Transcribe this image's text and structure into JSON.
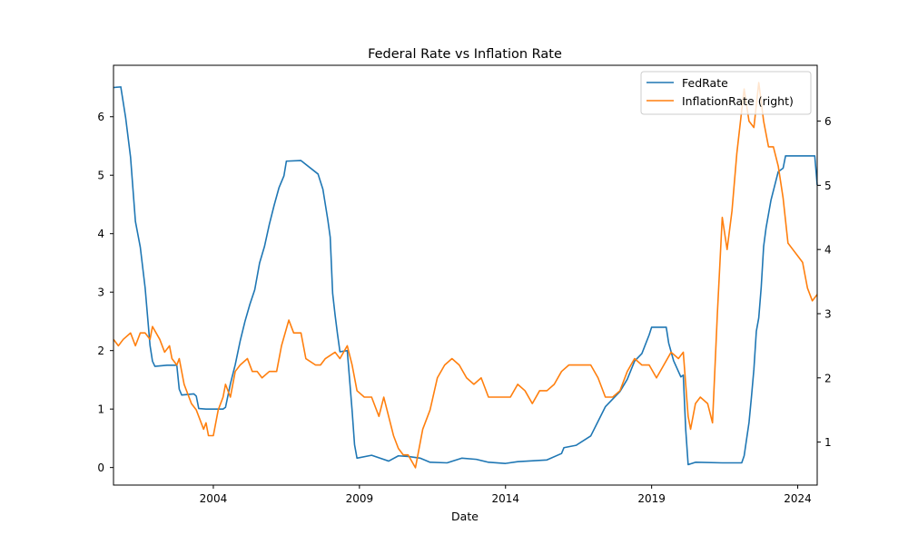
{
  "chart_data": {
    "type": "line",
    "title": "Federal Rate vs Inflation Rate",
    "xlabel": "Date",
    "ylabel_left": "",
    "ylabel_right": "",
    "x_ticks": [
      "2004",
      "2009",
      "2014",
      "2019",
      "2024"
    ],
    "y_left_ticks": [
      "0",
      "1",
      "2",
      "3",
      "4",
      "5",
      "6"
    ],
    "y_right_ticks": [
      "1",
      "2",
      "3",
      "4",
      "5",
      "6"
    ],
    "xlim": [
      "2000-08",
      "2024-09"
    ],
    "ylim_left": [
      -0.3,
      6.88
    ],
    "ylim_right": [
      0.33,
      6.87
    ],
    "legend": {
      "position": "top-right",
      "entries": [
        "FedRate",
        "InflationRate (right)"
      ]
    },
    "grid": false,
    "series": [
      {
        "name": "FedRate",
        "axis": "left",
        "color": "#1f77b4",
        "points": [
          [
            "2000-08",
            6.5
          ],
          [
            "2000-11",
            6.51
          ],
          [
            "2001-01",
            5.98
          ],
          [
            "2001-03",
            5.31
          ],
          [
            "2001-05",
            4.21
          ],
          [
            "2001-07",
            3.77
          ],
          [
            "2001-09",
            3.07
          ],
          [
            "2001-11",
            2.09
          ],
          [
            "2001-12",
            1.82
          ],
          [
            "2002-01",
            1.73
          ],
          [
            "2002-06",
            1.75
          ],
          [
            "2002-10",
            1.75
          ],
          [
            "2002-11",
            1.34
          ],
          [
            "2002-12",
            1.24
          ],
          [
            "2003-05",
            1.26
          ],
          [
            "2003-06",
            1.22
          ],
          [
            "2003-07",
            1.01
          ],
          [
            "2003-10",
            1.0
          ],
          [
            "2004-01",
            1.0
          ],
          [
            "2004-05",
            1.0
          ],
          [
            "2004-06",
            1.03
          ],
          [
            "2004-08",
            1.43
          ],
          [
            "2004-10",
            1.76
          ],
          [
            "2004-12",
            2.16
          ],
          [
            "2005-02",
            2.5
          ],
          [
            "2005-04",
            2.79
          ],
          [
            "2005-06",
            3.04
          ],
          [
            "2005-08",
            3.5
          ],
          [
            "2005-10",
            3.78
          ],
          [
            "2005-12",
            4.16
          ],
          [
            "2006-02",
            4.49
          ],
          [
            "2006-04",
            4.79
          ],
          [
            "2006-06",
            4.99
          ],
          [
            "2006-07",
            5.24
          ],
          [
            "2007-01",
            5.25
          ],
          [
            "2007-08",
            5.02
          ],
          [
            "2007-10",
            4.76
          ],
          [
            "2007-12",
            4.24
          ],
          [
            "2008-01",
            3.94
          ],
          [
            "2008-02",
            2.98
          ],
          [
            "2008-03",
            2.61
          ],
          [
            "2008-04",
            2.28
          ],
          [
            "2008-05",
            1.98
          ],
          [
            "2008-08",
            2.0
          ],
          [
            "2008-10",
            0.97
          ],
          [
            "2008-11",
            0.39
          ],
          [
            "2008-12",
            0.16
          ],
          [
            "2009-06",
            0.21
          ],
          [
            "2010-01",
            0.11
          ],
          [
            "2010-05",
            0.2
          ],
          [
            "2010-09",
            0.19
          ],
          [
            "2011-02",
            0.16
          ],
          [
            "2011-06",
            0.09
          ],
          [
            "2012-01",
            0.08
          ],
          [
            "2012-07",
            0.16
          ],
          [
            "2013-01",
            0.14
          ],
          [
            "2013-06",
            0.09
          ],
          [
            "2014-01",
            0.07
          ],
          [
            "2014-06",
            0.1
          ],
          [
            "2015-06",
            0.13
          ],
          [
            "2015-12",
            0.24
          ],
          [
            "2016-01",
            0.34
          ],
          [
            "2016-06",
            0.38
          ],
          [
            "2016-12",
            0.54
          ],
          [
            "2017-03",
            0.79
          ],
          [
            "2017-06",
            1.04
          ],
          [
            "2017-12",
            1.3
          ],
          [
            "2018-03",
            1.51
          ],
          [
            "2018-06",
            1.82
          ],
          [
            "2018-09",
            1.95
          ],
          [
            "2018-12",
            2.27
          ],
          [
            "2019-01",
            2.4
          ],
          [
            "2019-07",
            2.4
          ],
          [
            "2019-08",
            2.13
          ],
          [
            "2019-10",
            1.83
          ],
          [
            "2020-01",
            1.55
          ],
          [
            "2020-02",
            1.58
          ],
          [
            "2020-03",
            0.65
          ],
          [
            "2020-04",
            0.05
          ],
          [
            "2020-07",
            0.09
          ],
          [
            "2021-06",
            0.08
          ],
          [
            "2022-02",
            0.08
          ],
          [
            "2022-03",
            0.2
          ],
          [
            "2022-05",
            0.77
          ],
          [
            "2022-06",
            1.21
          ],
          [
            "2022-07",
            1.68
          ],
          [
            "2022-08",
            2.33
          ],
          [
            "2022-09",
            2.56
          ],
          [
            "2022-10",
            3.08
          ],
          [
            "2022-11",
            3.78
          ],
          [
            "2022-12",
            4.1
          ],
          [
            "2023-02",
            4.57
          ],
          [
            "2023-05",
            5.06
          ],
          [
            "2023-07",
            5.12
          ],
          [
            "2023-08",
            5.33
          ],
          [
            "2024-08",
            5.33
          ],
          [
            "2024-09",
            4.83
          ]
        ]
      },
      {
        "name": "InflationRate (right)",
        "axis": "right",
        "color": "#ff7f0e",
        "points": [
          [
            "2000-08",
            2.6
          ],
          [
            "2000-10",
            2.5
          ],
          [
            "2000-12",
            2.6
          ],
          [
            "2001-03",
            2.7
          ],
          [
            "2001-05",
            2.5
          ],
          [
            "2001-07",
            2.7
          ],
          [
            "2001-09",
            2.7
          ],
          [
            "2001-11",
            2.6
          ],
          [
            "2001-12",
            2.8
          ],
          [
            "2002-03",
            2.6
          ],
          [
            "2002-05",
            2.4
          ],
          [
            "2002-07",
            2.5
          ],
          [
            "2002-08",
            2.3
          ],
          [
            "2002-10",
            2.2
          ],
          [
            "2002-11",
            2.3
          ],
          [
            "2003-01",
            1.9
          ],
          [
            "2003-04",
            1.6
          ],
          [
            "2003-06",
            1.5
          ],
          [
            "2003-08",
            1.3
          ],
          [
            "2003-09",
            1.2
          ],
          [
            "2003-10",
            1.3
          ],
          [
            "2003-11",
            1.1
          ],
          [
            "2004-01",
            1.1
          ],
          [
            "2004-03",
            1.5
          ],
          [
            "2004-05",
            1.7
          ],
          [
            "2004-06",
            1.9
          ],
          [
            "2004-08",
            1.7
          ],
          [
            "2004-10",
            2.1
          ],
          [
            "2004-12",
            2.2
          ],
          [
            "2005-03",
            2.3
          ],
          [
            "2005-05",
            2.1
          ],
          [
            "2005-07",
            2.1
          ],
          [
            "2005-09",
            2.0
          ],
          [
            "2005-12",
            2.1
          ],
          [
            "2006-03",
            2.1
          ],
          [
            "2006-05",
            2.5
          ],
          [
            "2006-08",
            2.9
          ],
          [
            "2006-10",
            2.7
          ],
          [
            "2007-01",
            2.7
          ],
          [
            "2007-03",
            2.3
          ],
          [
            "2007-07",
            2.2
          ],
          [
            "2007-09",
            2.2
          ],
          [
            "2007-11",
            2.3
          ],
          [
            "2008-03",
            2.4
          ],
          [
            "2008-05",
            2.3
          ],
          [
            "2008-08",
            2.5
          ],
          [
            "2008-10",
            2.2
          ],
          [
            "2008-12",
            1.8
          ],
          [
            "2009-03",
            1.7
          ],
          [
            "2009-06",
            1.7
          ],
          [
            "2009-09",
            1.4
          ],
          [
            "2009-11",
            1.7
          ],
          [
            "2010-03",
            1.1
          ],
          [
            "2010-05",
            0.9
          ],
          [
            "2010-07",
            0.8
          ],
          [
            "2010-09",
            0.8
          ],
          [
            "2010-12",
            0.6
          ],
          [
            "2011-03",
            1.2
          ],
          [
            "2011-06",
            1.5
          ],
          [
            "2011-09",
            2.0
          ],
          [
            "2011-12",
            2.2
          ],
          [
            "2012-03",
            2.3
          ],
          [
            "2012-06",
            2.2
          ],
          [
            "2012-09",
            2.0
          ],
          [
            "2012-12",
            1.9
          ],
          [
            "2013-03",
            2.0
          ],
          [
            "2013-06",
            1.7
          ],
          [
            "2013-09",
            1.7
          ],
          [
            "2013-12",
            1.7
          ],
          [
            "2014-03",
            1.7
          ],
          [
            "2014-06",
            1.9
          ],
          [
            "2014-09",
            1.8
          ],
          [
            "2014-12",
            1.6
          ],
          [
            "2015-03",
            1.8
          ],
          [
            "2015-06",
            1.8
          ],
          [
            "2015-09",
            1.9
          ],
          [
            "2015-12",
            2.1
          ],
          [
            "2016-03",
            2.2
          ],
          [
            "2016-06",
            2.2
          ],
          [
            "2016-09",
            2.2
          ],
          [
            "2016-12",
            2.2
          ],
          [
            "2017-03",
            2.0
          ],
          [
            "2017-06",
            1.7
          ],
          [
            "2017-09",
            1.7
          ],
          [
            "2017-12",
            1.8
          ],
          [
            "2018-03",
            2.1
          ],
          [
            "2018-06",
            2.3
          ],
          [
            "2018-09",
            2.2
          ],
          [
            "2018-12",
            2.2
          ],
          [
            "2019-03",
            2.0
          ],
          [
            "2019-06",
            2.2
          ],
          [
            "2019-09",
            2.4
          ],
          [
            "2019-12",
            2.3
          ],
          [
            "2020-02",
            2.4
          ],
          [
            "2020-04",
            1.4
          ],
          [
            "2020-05",
            1.2
          ],
          [
            "2020-07",
            1.6
          ],
          [
            "2020-09",
            1.7
          ],
          [
            "2020-12",
            1.6
          ],
          [
            "2021-02",
            1.3
          ],
          [
            "2021-04",
            3.0
          ],
          [
            "2021-06",
            4.5
          ],
          [
            "2021-08",
            4.0
          ],
          [
            "2021-10",
            4.6
          ],
          [
            "2021-12",
            5.5
          ],
          [
            "2022-03",
            6.5
          ],
          [
            "2022-05",
            6.0
          ],
          [
            "2022-07",
            5.9
          ],
          [
            "2022-09",
            6.6
          ],
          [
            "2022-11",
            6.0
          ],
          [
            "2023-01",
            5.6
          ],
          [
            "2023-03",
            5.6
          ],
          [
            "2023-05",
            5.3
          ],
          [
            "2023-07",
            4.8
          ],
          [
            "2023-09",
            4.1
          ],
          [
            "2023-11",
            4.0
          ],
          [
            "2024-01",
            3.9
          ],
          [
            "2024-03",
            3.8
          ],
          [
            "2024-05",
            3.4
          ],
          [
            "2024-07",
            3.2
          ],
          [
            "2024-09",
            3.3
          ]
        ]
      }
    ]
  }
}
